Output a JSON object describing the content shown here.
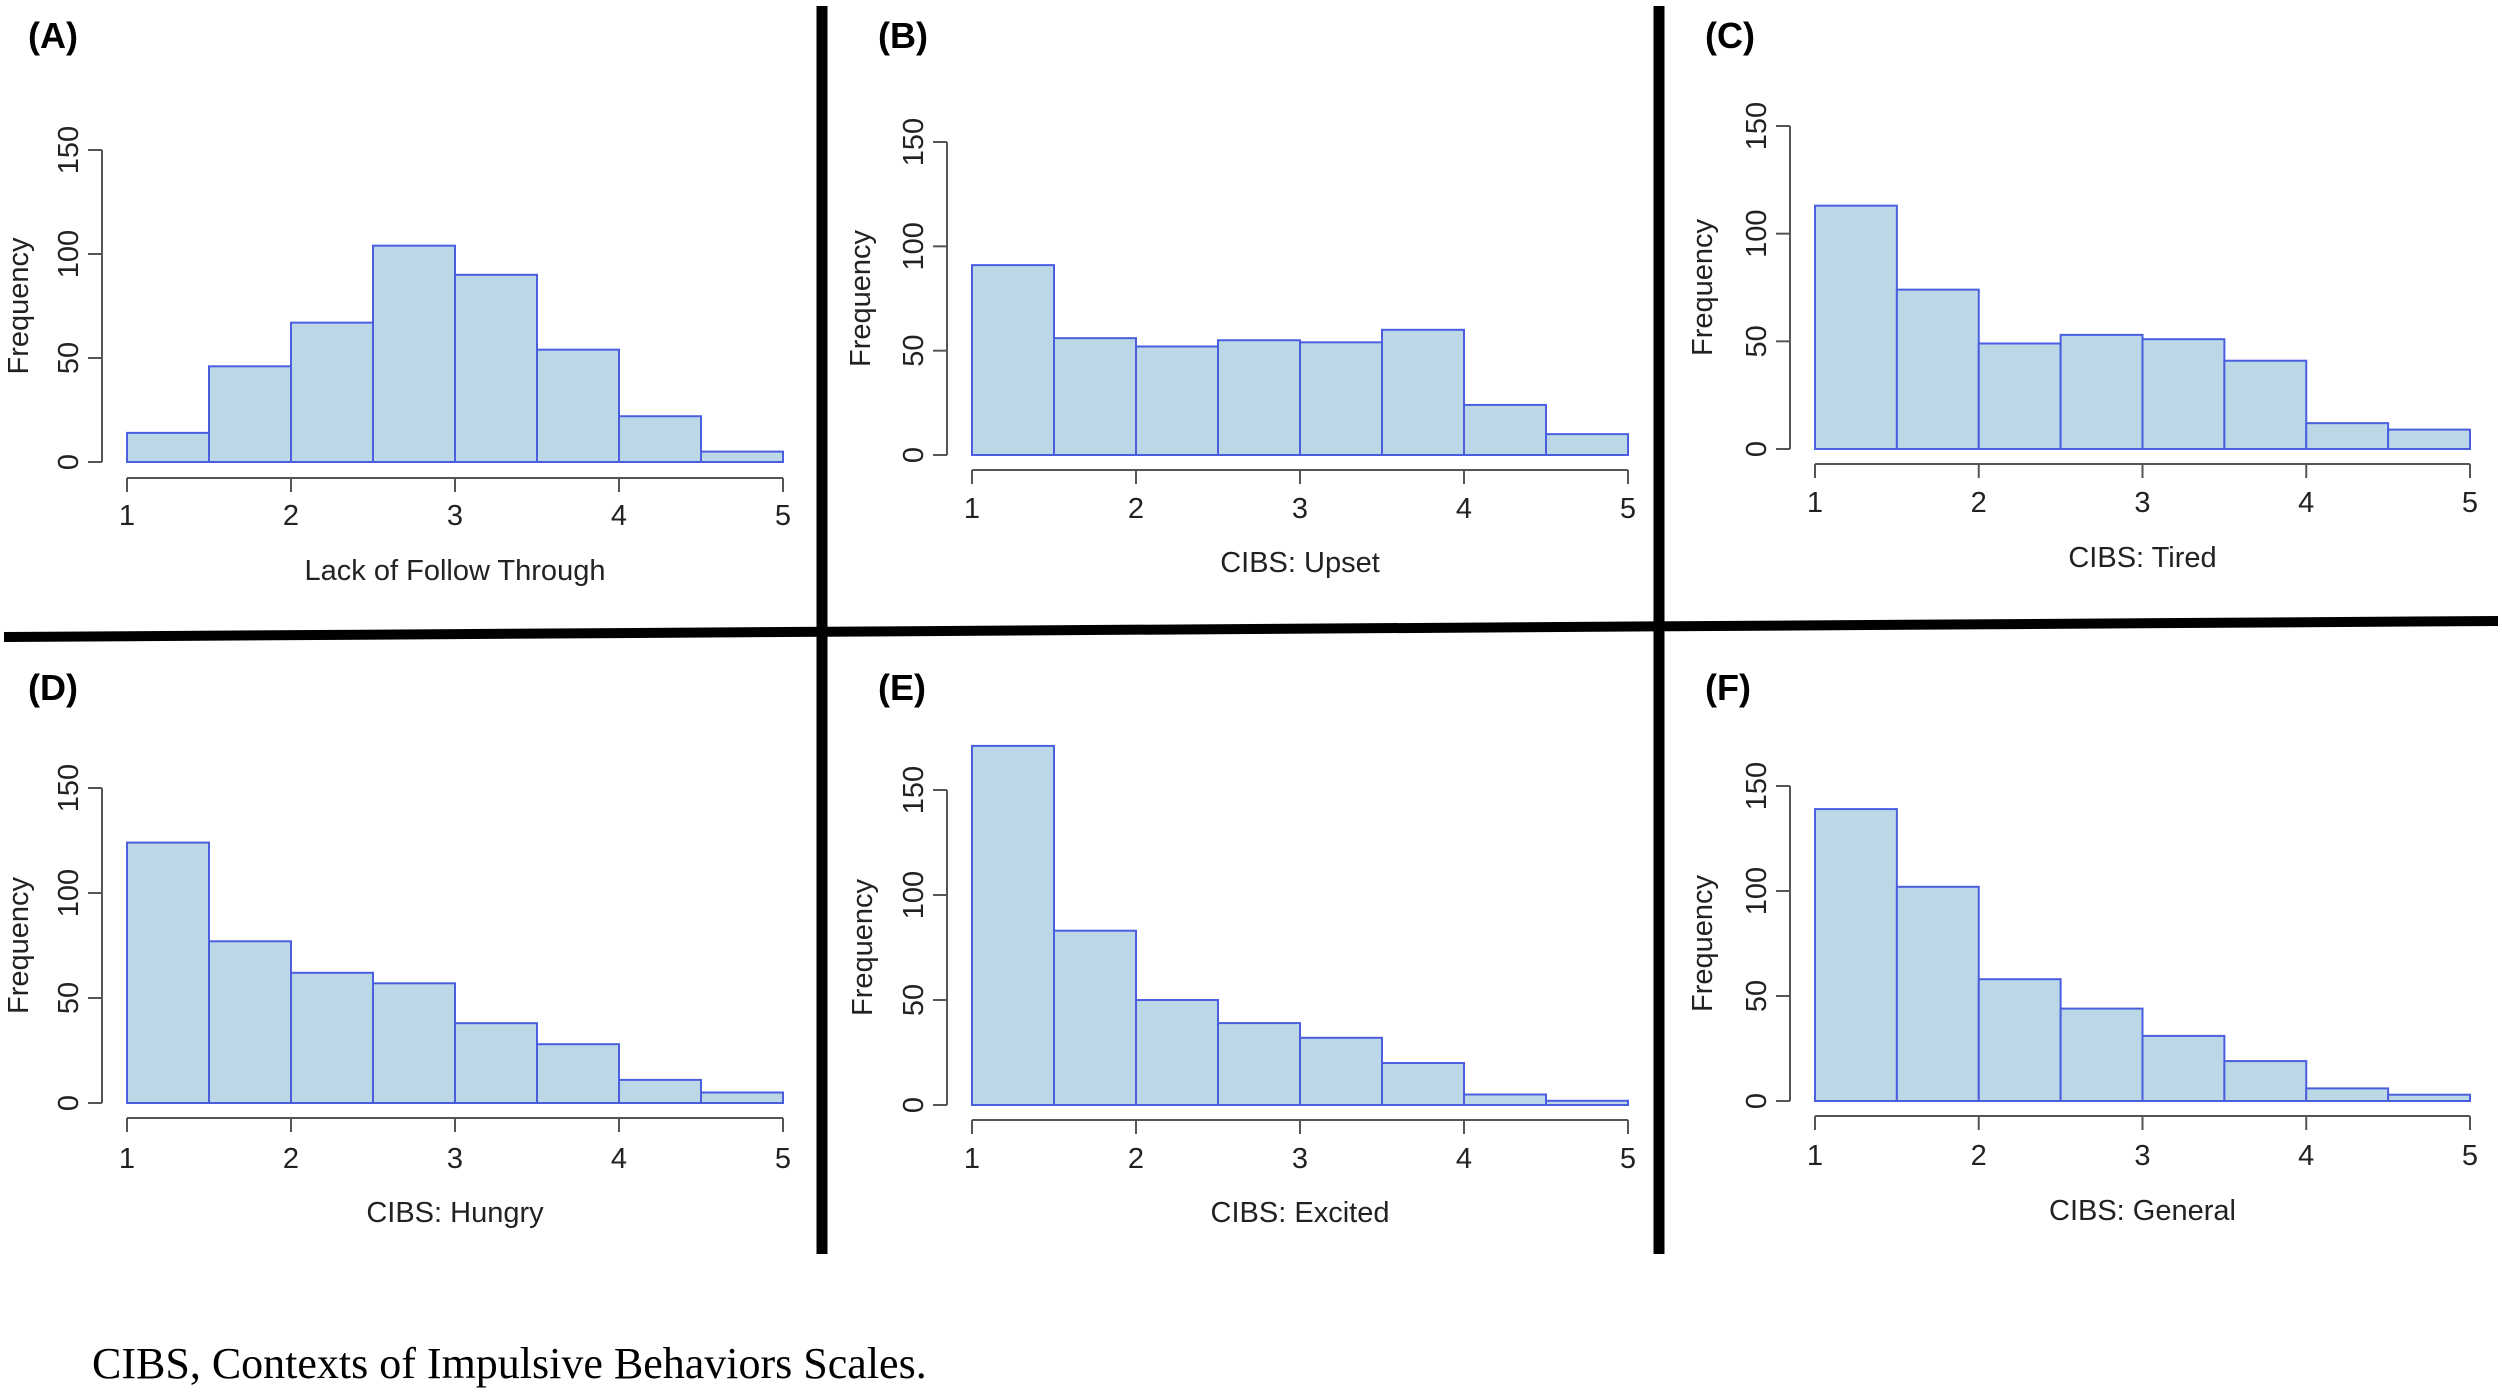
{
  "chart_data": [
    {
      "panel": "(A)",
      "type": "histogram",
      "xlabel": "Lack of Follow Through",
      "ylabel": "Frequency",
      "bin_edges": [
        1,
        1.5,
        2,
        2.5,
        3,
        3.5,
        4,
        4.5,
        5
      ],
      "values": [
        14,
        46,
        67,
        104,
        90,
        54,
        22,
        5
      ],
      "xticks": [
        1,
        2,
        3,
        4,
        5
      ],
      "yticks": [
        0,
        50,
        100,
        150
      ],
      "xlim": [
        1,
        5
      ],
      "ylim": [
        0,
        150
      ]
    },
    {
      "panel": "(B)",
      "type": "histogram",
      "xlabel": "CIBS: Upset",
      "ylabel": "Frequency",
      "bin_edges": [
        1,
        1.5,
        2,
        2.5,
        3,
        3.5,
        4,
        4.5,
        5
      ],
      "values": [
        91,
        56,
        52,
        55,
        54,
        60,
        24,
        10
      ],
      "xticks": [
        1,
        2,
        3,
        4,
        5
      ],
      "yticks": [
        0,
        50,
        100,
        150
      ],
      "xlim": [
        1,
        5
      ],
      "ylim": [
        0,
        150
      ]
    },
    {
      "panel": "(C)",
      "type": "histogram",
      "xlabel": "CIBS: Tired",
      "ylabel": "Frequency",
      "bin_edges": [
        1,
        1.5,
        2,
        2.5,
        3,
        3.5,
        4,
        4.5,
        5
      ],
      "values": [
        113,
        74,
        49,
        53,
        51,
        41,
        12,
        9
      ],
      "xticks": [
        1,
        2,
        3,
        4,
        5
      ],
      "yticks": [
        0,
        50,
        100,
        150
      ],
      "xlim": [
        1,
        5
      ],
      "ylim": [
        0,
        150
      ]
    },
    {
      "panel": "(D)",
      "type": "histogram",
      "xlabel": "CIBS: Hungry",
      "ylabel": "Frequency",
      "bin_edges": [
        1,
        1.5,
        2,
        2.5,
        3,
        3.5,
        4,
        4.5,
        5
      ],
      "values": [
        124,
        77,
        62,
        57,
        38,
        28,
        11,
        5
      ],
      "xticks": [
        1,
        2,
        3,
        4,
        5
      ],
      "yticks": [
        0,
        50,
        100,
        150
      ],
      "xlim": [
        1,
        5
      ],
      "ylim": [
        0,
        150
      ]
    },
    {
      "panel": "(E)",
      "type": "histogram",
      "xlabel": "CIBS: Excited",
      "ylabel": "Frequency",
      "bin_edges": [
        1,
        1.5,
        2,
        2.5,
        3,
        3.5,
        4,
        4.5,
        5
      ],
      "values": [
        171,
        83,
        50,
        39,
        32,
        20,
        5,
        2
      ],
      "xticks": [
        1,
        2,
        3,
        4,
        5
      ],
      "yticks": [
        0,
        50,
        100,
        150
      ],
      "xlim": [
        1,
        5
      ],
      "ylim": [
        0,
        150
      ]
    },
    {
      "panel": "(F)",
      "type": "histogram",
      "xlabel": "CIBS: General",
      "ylabel": "Frequency",
      "bin_edges": [
        1,
        1.5,
        2,
        2.5,
        3,
        3.5,
        4,
        4.5,
        5
      ],
      "values": [
        139,
        102,
        58,
        44,
        31,
        19,
        6,
        3
      ],
      "xticks": [
        1,
        2,
        3,
        4,
        5
      ],
      "yticks": [
        0,
        50,
        100,
        150
      ],
      "xlim": [
        1,
        5
      ],
      "ylim": [
        0,
        150
      ]
    }
  ],
  "colors": {
    "bar_fill": "#bcd8e6",
    "bar_stroke": "#4a5fe0",
    "axis": "#555555",
    "divider": "#000000"
  },
  "caption": "CIBS, Contexts of Impulsive Behaviors Scales."
}
